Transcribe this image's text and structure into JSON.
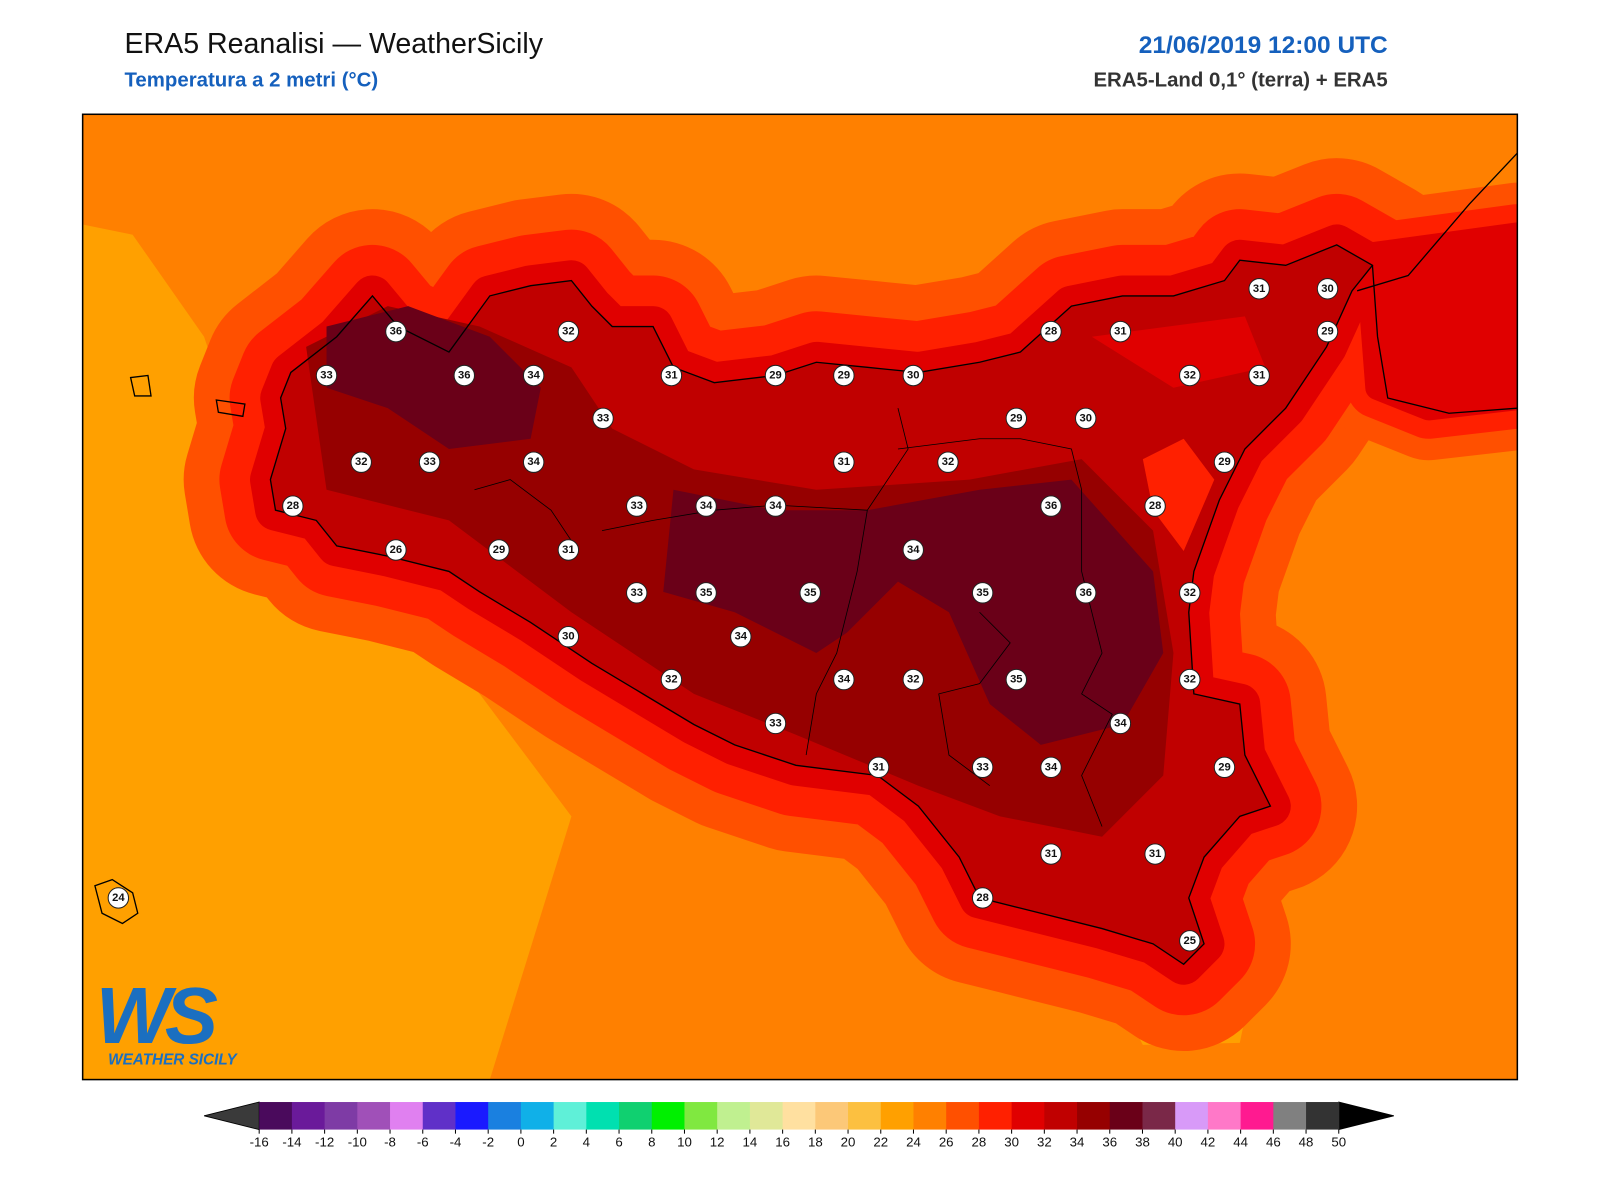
{
  "header": {
    "title": "ERA5 Reanalisi — WeatherSicily",
    "subtitle": "Temperatura a 2 metri (°C)",
    "datetime": "21/06/2019 12:00 UTC",
    "source": "ERA5-Land 0,1° (terra) + ERA5"
  },
  "map": {
    "stations": [
      36,
      32,
      33,
      36,
      34,
      31,
      29,
      29,
      30,
      28,
      31,
      31,
      30,
      29,
      32,
      31,
      33,
      29,
      30,
      32,
      33,
      34,
      31,
      32,
      29,
      28,
      33,
      34,
      34,
      36,
      28,
      26,
      29,
      31,
      34,
      33,
      35,
      35,
      35,
      36,
      32,
      30,
      34,
      32,
      34,
      32,
      35,
      32,
      33,
      34,
      31,
      33,
      34,
      29,
      31,
      31,
      28,
      24,
      25
    ]
  },
  "logo": {
    "mark": "WS",
    "name": "WEATHER SICILY"
  },
  "colorbar": {
    "ticks": [
      -16,
      -14,
      -12,
      -10,
      -8,
      -6,
      -4,
      -2,
      0,
      2,
      4,
      6,
      8,
      10,
      12,
      14,
      16,
      18,
      20,
      22,
      24,
      26,
      28,
      30,
      32,
      34,
      36,
      38,
      40,
      42,
      44,
      46,
      48,
      50
    ],
    "colors": [
      "#4a0a5c",
      "#6a1a9a",
      "#7e3ba5",
      "#a050b8",
      "#e080f0",
      "#6030c8",
      "#1a1aff",
      "#1a80e0",
      "#10b0e8",
      "#5ff0d8",
      "#00e0b0",
      "#10d070",
      "#00f000",
      "#80e840",
      "#c0f090",
      "#e0e898",
      "#ffe0a0",
      "#fcc878",
      "#fcc040",
      "#ffa000",
      "#ff8000",
      "#ff5000",
      "#ff2000",
      "#e00000",
      "#c00000",
      "#960000",
      "#6a0018",
      "#7a2848",
      "#d89af8",
      "#ff78c8",
      "#ff1a90",
      "#808080",
      "#333333"
    ],
    "under_color": "#3a3a3a",
    "over_color": "#000000"
  }
}
